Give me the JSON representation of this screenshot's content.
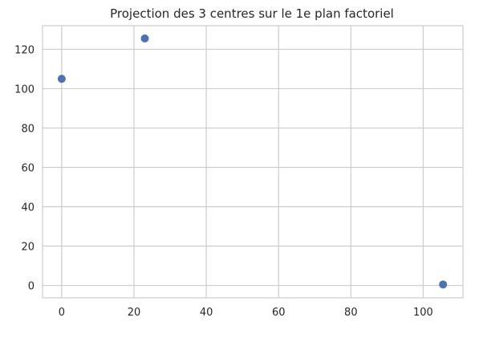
{
  "chart_data": {
    "type": "scatter",
    "title": "Projection des 3 centres sur le 1e plan factoriel",
    "xlabel": "",
    "ylabel": "",
    "xlim": [
      -5.3,
      111.0
    ],
    "ylim": [
      -6.3,
      132.0
    ],
    "x_ticks": [
      0,
      20,
      40,
      60,
      80,
      100
    ],
    "y_ticks": [
      0,
      20,
      40,
      60,
      80,
      100,
      120
    ],
    "grid": true,
    "points": [
      {
        "x": 0.0,
        "y": 105.0
      },
      {
        "x": 23.0,
        "y": 125.5
      },
      {
        "x": 105.5,
        "y": 0.5
      }
    ],
    "point_color": "#4c72b0",
    "grid_color": "#cccccc",
    "frame_color": "#cccccc"
  }
}
